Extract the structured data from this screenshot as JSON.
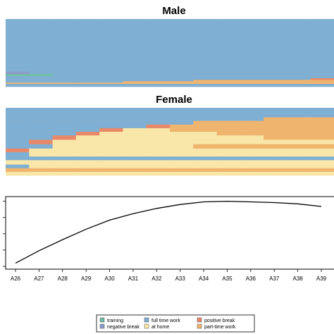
{
  "chart_data": [
    {
      "type": "heatmap",
      "title": "Male",
      "x": [
        "A26",
        "A27",
        "A28",
        "A29",
        "A30",
        "A31",
        "A32",
        "A33",
        "A34",
        "A35",
        "A36",
        "A37",
        "A38",
        "A39"
      ],
      "description_note": "",
      "rows": [
        {
          "share": 0.78,
          "states": [
            "full time work",
            "full time work",
            "full time work",
            "full time work",
            "full time work",
            "full time work",
            "full time work",
            "full time work",
            "full time work",
            "full time work",
            "full time work",
            "full time work",
            "full time work",
            "full time work"
          ]
        },
        {
          "share": 0.035,
          "states": [
            "negative break",
            "full time work",
            "full time work",
            "full time work",
            "full time work",
            "full time work",
            "full time work",
            "full time work",
            "full time work",
            "full time work",
            "full time work",
            "full time work",
            "full time work",
            "full time work"
          ]
        },
        {
          "share": 0.03,
          "states": [
            "training",
            "training",
            "full time work",
            "full time work",
            "full time work",
            "full time work",
            "full time work",
            "full time work",
            "full time work",
            "full time work",
            "full time work",
            "full time work",
            "full time work",
            "full time work"
          ]
        },
        {
          "share": 0.03,
          "states": [
            "full time work",
            "full time work",
            "full time work",
            "full time work",
            "full time work",
            "full time work",
            "full time work",
            "full time work",
            "full time work",
            "full time work",
            "full time work",
            "full time work",
            "full time work",
            "full time work"
          ]
        },
        {
          "share": 0.025,
          "states": [
            "full time work",
            "full time work",
            "full time work",
            "full time work",
            "full time work",
            "full time work",
            "full time work",
            "full time work",
            "full time work",
            "full time work",
            "full time work",
            "full time work",
            "full time work",
            "positive break"
          ]
        },
        {
          "share": 0.02,
          "states": [
            "full time work",
            "full time work",
            "full time work",
            "full time work",
            "full time work",
            "full time work",
            "full time work",
            "full time work",
            "part-time work",
            "part-time work",
            "part-time work",
            "part-time work",
            "part-time work",
            "part-time work"
          ]
        },
        {
          "share": 0.02,
          "states": [
            "full time work",
            "full time work",
            "full time work",
            "full time work",
            "full time work",
            "part-time work",
            "part-time work",
            "part-time work",
            "part-time work",
            "part-time work",
            "part-time work",
            "part-time work",
            "part-time work",
            "part-time work"
          ]
        },
        {
          "share": 0.02,
          "states": [
            "part-time work",
            "part-time work",
            "part-time work",
            "part-time work",
            "part-time work",
            "part-time work",
            "part-time work",
            "part-time work",
            "part-time work",
            "part-time work",
            "part-time work",
            "part-time work",
            "part-time work",
            "part-time work"
          ]
        },
        {
          "share": 0.04,
          "states": [
            "full time work",
            "full time work",
            "full time work",
            "full time work",
            "full time work",
            "full time work",
            "full time work",
            "full time work",
            "full time work",
            "full time work",
            "full time work",
            "full time work",
            "full time work",
            "full time work"
          ]
        }
      ]
    },
    {
      "type": "heatmap",
      "title": "Female",
      "x": [
        "A26",
        "A27",
        "A28",
        "A29",
        "A30",
        "A31",
        "A32",
        "A33",
        "A34",
        "A35",
        "A36",
        "A37",
        "A38",
        "A39"
      ],
      "rows": [
        {
          "share": 0.13,
          "states": [
            "full time work",
            "full time work",
            "full time work",
            "full time work",
            "full time work",
            "full time work",
            "full time work",
            "full time work",
            "full time work",
            "full time work",
            "full time work",
            "full time work",
            "full time work",
            "full time work"
          ]
        },
        {
          "share": 0.05,
          "states": [
            "full time work",
            "full time work",
            "full time work",
            "full time work",
            "full time work",
            "full time work",
            "full time work",
            "full time work",
            "full time work",
            "full time work",
            "full time work",
            "part-time work",
            "part-time work",
            "part-time work"
          ]
        },
        {
          "share": 0.05,
          "states": [
            "full time work",
            "full time work",
            "full time work",
            "full time work",
            "full time work",
            "full time work",
            "full time work",
            "full time work",
            "part-time work",
            "part-time work",
            "part-time work",
            "part-time work",
            "part-time work",
            "part-time work"
          ]
        },
        {
          "share": 0.05,
          "states": [
            "full time work",
            "full time work",
            "full time work",
            "full time work",
            "full time work",
            "full time work",
            "positive break",
            "part-time work",
            "part-time work",
            "part-time work",
            "part-time work",
            "part-time work",
            "part-time work",
            "part-time work"
          ]
        },
        {
          "share": 0.05,
          "states": [
            "full time work",
            "full time work",
            "full time work",
            "full time work",
            "positive break",
            "at home",
            "at home",
            "part-time work",
            "part-time work",
            "part-time work",
            "part-time work",
            "part-time work",
            "part-time work",
            "part-time work"
          ]
        },
        {
          "share": 0.05,
          "states": [
            "full time work",
            "full time work",
            "full time work",
            "positive break",
            "at home",
            "at home",
            "at home",
            "at home",
            "at home",
            "part-time work",
            "part-time work",
            "part-time work",
            "part-time work",
            "part-time work"
          ]
        },
        {
          "share": 0.06,
          "states": [
            "full time work",
            "full time work",
            "positive break",
            "at home",
            "at home",
            "at home",
            "at home",
            "at home",
            "at home",
            "at home",
            "at home",
            "part-time work",
            "part-time work",
            "part-time work"
          ]
        },
        {
          "share": 0.06,
          "states": [
            "full time work",
            "positive break",
            "at home",
            "at home",
            "at home",
            "at home",
            "at home",
            "at home",
            "at home",
            "at home",
            "at home",
            "at home",
            "at home",
            "at home"
          ]
        },
        {
          "share": 0.06,
          "states": [
            "full time work",
            "full time work",
            "at home",
            "at home",
            "at home",
            "at home",
            "at home",
            "at home",
            "part-time work",
            "part-time work",
            "part-time work",
            "part-time work",
            "part-time work",
            "part-time work"
          ]
        },
        {
          "share": 0.05,
          "states": [
            "positive break",
            "at home",
            "at home",
            "at home",
            "at home",
            "at home",
            "at home",
            "at home",
            "at home",
            "at home",
            "at home",
            "at home",
            "at home",
            "at home"
          ]
        },
        {
          "share": 0.06,
          "states": [
            "full time work",
            "at home",
            "at home",
            "at home",
            "at home",
            "at home",
            "at home",
            "at home",
            "at home",
            "at home",
            "at home",
            "at home",
            "at home",
            "at home"
          ]
        },
        {
          "share": 0.05,
          "states": [
            "full time work",
            "full time work",
            "full time work",
            "full time work",
            "full time work",
            "full time work",
            "full time work",
            "full time work",
            "full time work",
            "full time work",
            "full time work",
            "full time work",
            "full time work",
            "full time work"
          ]
        },
        {
          "share": 0.06,
          "states": [
            "at home",
            "at home",
            "at home",
            "at home",
            "at home",
            "at home",
            "at home",
            "at home",
            "at home",
            "at home",
            "at home",
            "at home",
            "at home",
            "at home"
          ]
        },
        {
          "share": 0.05,
          "states": [
            "full time work",
            "at home",
            "at home",
            "at home",
            "at home",
            "at home",
            "at home",
            "at home",
            "at home",
            "at home",
            "at home",
            "at home",
            "at home",
            "at home"
          ]
        },
        {
          "share": 0.05,
          "states": [
            "part-time work",
            "part-time work",
            "part-time work",
            "part-time work",
            "part-time work",
            "part-time work",
            "part-time work",
            "part-time work",
            "part-time work",
            "part-time work",
            "part-time work",
            "part-time work",
            "part-time work",
            "part-time work"
          ]
        },
        {
          "share": 0.05,
          "states": [
            "at home",
            "at home",
            "at home",
            "at home",
            "at home",
            "at home",
            "at home",
            "at home",
            "at home",
            "at home",
            "at home",
            "at home",
            "at home",
            "at home"
          ]
        }
      ]
    },
    {
      "type": "line",
      "x": [
        "A26",
        "A27",
        "A28",
        "A29",
        "A30",
        "A31",
        "A32",
        "A33",
        "A34",
        "A35",
        "A36",
        "A37",
        "A38",
        "A39"
      ],
      "series": [
        {
          "values": [
            0.05,
            0.24,
            0.41,
            0.57,
            0.71,
            0.81,
            0.89,
            0.95,
            0.99,
            1.0,
            0.99,
            0.98,
            0.96,
            0.92
          ]
        }
      ],
      "ylim": [
        0,
        1.05
      ],
      "grid": false
    }
  ],
  "legend": {
    "placement": "bottom-center",
    "items": [
      {
        "label": "training",
        "color": "#6FBFA6"
      },
      {
        "label": "negative break",
        "color": "#8F9BC9"
      },
      {
        "label": "full time work",
        "color": "#7FAFD2"
      },
      {
        "label": "at home",
        "color": "#F8E7A8"
      },
      {
        "label": "positive break",
        "color": "#E98868"
      },
      {
        "label": "part-time work",
        "color": "#EFB56E"
      }
    ]
  },
  "colors": {
    "full time work": "#7FAFD2",
    "part-time work": "#EFB56E",
    "at home": "#F8E7A8",
    "positive break": "#E98868",
    "negative break": "#8F9BC9",
    "training": "#6FBFA6"
  }
}
